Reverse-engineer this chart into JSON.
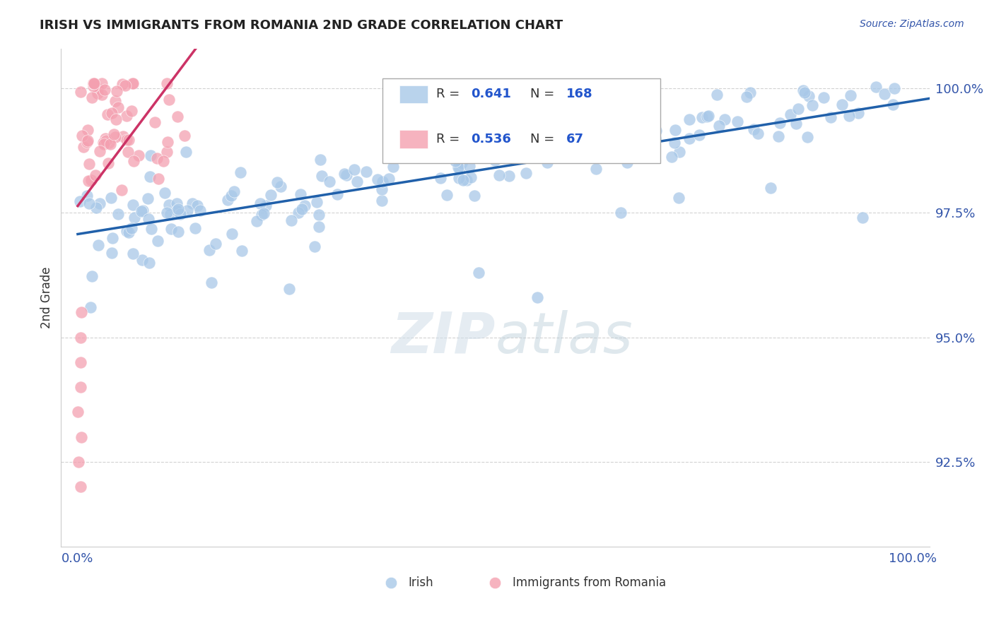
{
  "title": "IRISH VS IMMIGRANTS FROM ROMANIA 2ND GRADE CORRELATION CHART",
  "source_text": "Source: ZipAtlas.com",
  "ylabel": "2nd Grade",
  "blue_R": 0.641,
  "blue_N": 168,
  "pink_R": 0.536,
  "pink_N": 67,
  "blue_color": "#a8c8e8",
  "blue_line_color": "#2060aa",
  "pink_color": "#f4a0b0",
  "pink_line_color": "#cc3366",
  "legend_R_color": "#2255cc",
  "background_color": "#ffffff",
  "grid_color": "#c0c0c0",
  "title_color": "#222222",
  "watermark_color": "#c8d8e8",
  "ylim": [
    0.908,
    1.008
  ],
  "xlim": [
    -0.02,
    1.02
  ],
  "y_ticks": [
    0.925,
    0.95,
    0.975,
    1.0
  ],
  "y_tick_labels": [
    "92.5%",
    "95.0%",
    "97.5%",
    "100.0%"
  ],
  "x_ticks": [
    0.0,
    0.1,
    0.2,
    0.3,
    0.4,
    0.5,
    0.6,
    0.7,
    0.8,
    0.9,
    1.0
  ],
  "x_tick_labels": [
    "0.0%",
    "",
    "",
    "",
    "",
    "",
    "",
    "",
    "",
    "",
    "100.0%"
  ]
}
